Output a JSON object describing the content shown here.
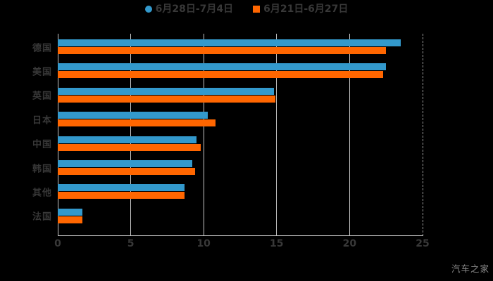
{
  "watermark": "汽车之家",
  "colors": {
    "background": "#000000",
    "series_blue": "#3399cc",
    "series_orange": "#ff6600",
    "gridline": "#c6c6c6",
    "dashed_line": "#9a9a9a",
    "text": "#383838",
    "watermark_text": "#8a8a8a"
  },
  "legend": {
    "items": [
      {
        "label": "6月28日-7月4日",
        "marker": "circle-icon",
        "color": "#3399cc"
      },
      {
        "label": "6月21日-6月27日",
        "marker": "square-icon",
        "color": "#ff6600"
      }
    ]
  },
  "chart_data": {
    "type": "bar",
    "orientation": "horizontal",
    "title": "",
    "xlabel": "",
    "ylabel": "",
    "categories": [
      "德国",
      "美国",
      "英国",
      "日本",
      "中国",
      "韩国",
      "其他",
      "法国"
    ],
    "series": [
      {
        "name": "6月28日-7月4日",
        "color": "#3399cc",
        "values": [
          23.5,
          22.5,
          14.8,
          10.3,
          9.5,
          9.2,
          8.7,
          1.7
        ]
      },
      {
        "name": "6月21日-6月27日",
        "color": "#ff6600",
        "values": [
          22.5,
          22.3,
          14.9,
          10.8,
          9.8,
          9.4,
          8.7,
          1.7
        ]
      }
    ],
    "xlim": [
      0,
      25
    ],
    "xticks": [
      0,
      5,
      10,
      15,
      20,
      25
    ],
    "grid": true,
    "legend_position": "top-center"
  }
}
